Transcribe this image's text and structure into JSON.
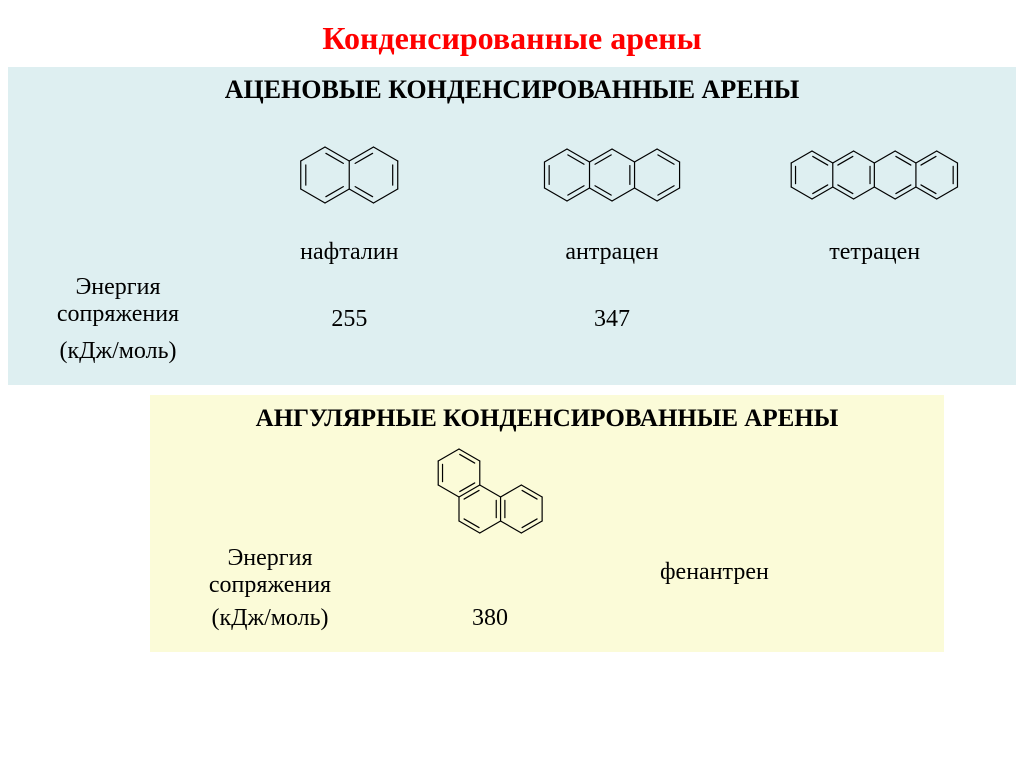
{
  "title": {
    "text": "Конденсированные арены",
    "color": "#ff0000",
    "fontsize": 32
  },
  "panel1": {
    "bg": "#deeff1",
    "heading": "АЦЕНОВЫЕ  КОНДЕНСИРОВАННЫЕ  АРЕНЫ",
    "heading_fontsize": 26,
    "row_label_lines": [
      "Энергия",
      "сопряжения",
      "(кДж/моль)"
    ],
    "label_fontsize": 24,
    "compounds": [
      {
        "name": "нафталин",
        "energy": "255",
        "rings": 2
      },
      {
        "name": "антрацен",
        "energy": "347",
        "rings": 3
      },
      {
        "name": "тетрацен",
        "energy": "",
        "rings": 4
      }
    ],
    "stroke": "#000000",
    "stroke_width": 1.2
  },
  "panel2": {
    "bg": "#fbfbd8",
    "heading": "АНГУЛЯРНЫЕ  КОНДЕНСИРОВАННЫЕ  АРЕНЫ",
    "heading_fontsize": 25,
    "label_lines": [
      "Энергия",
      "сопряжения",
      "(кДж/моль)"
    ],
    "label_fontsize": 24,
    "compound": {
      "name": "фенантрен",
      "energy": "380"
    },
    "stroke": "#000000",
    "stroke_width": 1.2
  }
}
